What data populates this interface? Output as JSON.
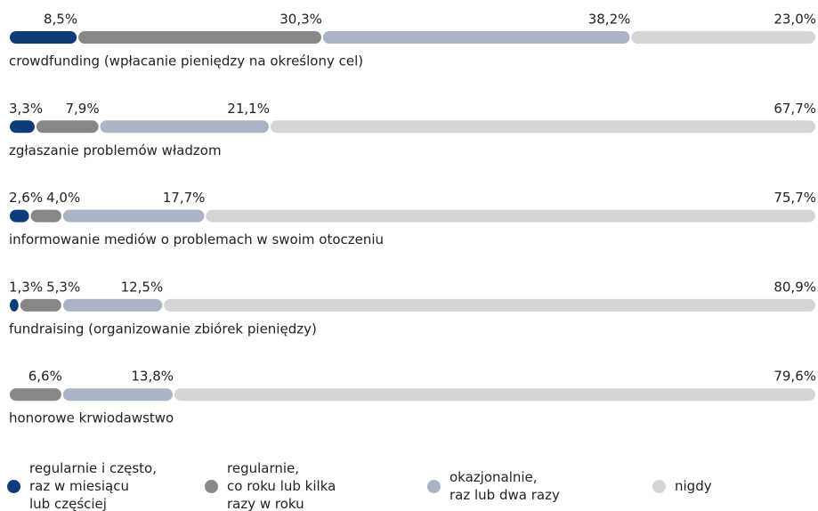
{
  "chart_data": {
    "type": "stacked-bar-horizontal",
    "categories": [
      "crowdfunding (wpłacanie pieniędzy na określony cel)",
      "zgłaszanie problemów władzom",
      "informowanie mediów o problemach w swoim otoczeniu",
      "fundraising (organizowanie zbiórek pieniędzy)",
      "honorowe krwiodawstwo"
    ],
    "xlim": [
      0,
      100
    ],
    "series": [
      {
        "name": "regularnie i często,\nraz w miesiącu\nlub częściej",
        "color": "#0d3c78",
        "values": [
          8.5,
          3.3,
          2.6,
          1.3,
          null
        ],
        "value_labels": [
          "8,5%",
          "3,3%",
          "2,6%",
          "1,3%",
          null
        ]
      },
      {
        "name": "regularnie,\nco roku lub kilka\nrazy w roku",
        "color": "#878787",
        "values": [
          30.3,
          7.9,
          4.0,
          5.3,
          6.6
        ],
        "value_labels": [
          "30,3%",
          "7,9%",
          "4,0%",
          "5,3%",
          "6,6%"
        ]
      },
      {
        "name": "okazjonalnie,\nraz lub dwa razy",
        "color": "#a9b4c6",
        "values": [
          38.2,
          21.1,
          17.7,
          12.5,
          13.8
        ],
        "value_labels": [
          "38,2%",
          "21,1%",
          "17,7%",
          "12,5%",
          "13,8%"
        ]
      },
      {
        "name": "nigdy",
        "color": "#d5d5d5",
        "values": [
          23.0,
          67.7,
          75.7,
          80.9,
          79.6
        ],
        "value_labels": [
          "23,0%",
          "67,7%",
          "75,7%",
          "80,9%",
          "79,6%"
        ]
      }
    ]
  }
}
